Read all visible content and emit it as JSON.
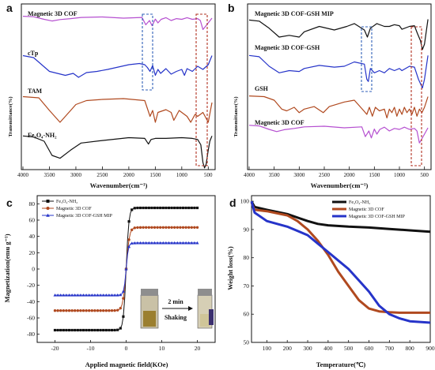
{
  "chart_data": [
    {
      "panel": "a",
      "type": "line",
      "xlabel": "Wavenumber(cm⁻¹)",
      "ylabel": "Transmittance(%)",
      "xlim": [
        4000,
        400
      ],
      "xticks": [
        4000,
        3500,
        3000,
        2500,
        2000,
        1500,
        1000,
        500
      ],
      "series": [
        {
          "name": "Magnetic 3D COF",
          "color": "#b54fd0",
          "x": [
            4000,
            3800,
            3600,
            3450,
            3300,
            3100,
            2900,
            2500,
            2100,
            1750,
            1680,
            1610,
            1560,
            1500,
            1450,
            1390,
            1300,
            1200,
            1100,
            1000,
            900,
            800,
            700,
            650,
            600,
            570,
            500,
            430
          ],
          "y": [
            0.98,
            0.96,
            0.85,
            0.78,
            0.84,
            0.88,
            0.93,
            0.95,
            0.9,
            0.93,
            0.62,
            0.8,
            0.58,
            0.86,
            0.7,
            0.85,
            0.92,
            0.8,
            0.88,
            0.85,
            0.92,
            0.85,
            0.88,
            0.8,
            0.42,
            0.5,
            0.7,
            0.9
          ]
        },
        {
          "name": "cTp",
          "color": "#2634c9",
          "x": [
            4000,
            3800,
            3500,
            3200,
            3050,
            2950,
            2800,
            2600,
            2400,
            2000,
            1800,
            1700,
            1650,
            1600,
            1550,
            1500,
            1450,
            1400,
            1300,
            1200,
            1100,
            1000,
            950,
            900,
            800,
            700,
            600,
            500,
            430
          ],
          "y": [
            0.95,
            0.9,
            0.55,
            0.45,
            0.5,
            0.4,
            0.52,
            0.55,
            0.6,
            0.72,
            0.75,
            0.72,
            0.65,
            0.55,
            0.7,
            0.45,
            0.6,
            0.5,
            0.62,
            0.48,
            0.55,
            0.6,
            0.45,
            0.62,
            0.55,
            0.68,
            0.6,
            0.72,
            0.95
          ]
        },
        {
          "name": "TAM",
          "color": "#b0491f",
          "x": [
            4000,
            3700,
            3500,
            3400,
            3300,
            3200,
            3100,
            3000,
            2800,
            2500,
            2100,
            1700,
            1600,
            1550,
            1500,
            1450,
            1300,
            1200,
            1150,
            1050,
            1000,
            900,
            830,
            750,
            700,
            600,
            500,
            430
          ],
          "y": [
            0.95,
            0.92,
            0.6,
            0.45,
            0.3,
            0.45,
            0.6,
            0.75,
            0.85,
            0.88,
            0.9,
            0.85,
            0.45,
            0.6,
            0.3,
            0.55,
            0.62,
            0.55,
            0.35,
            0.6,
            0.55,
            0.45,
            0.3,
            0.5,
            0.45,
            0.55,
            0.3,
            0.8
          ]
        },
        {
          "name": "Fe₃O₄-NH₂",
          "color": "#111111",
          "x": [
            4000,
            3800,
            3600,
            3450,
            3300,
            3100,
            2900,
            2500,
            2000,
            1700,
            1630,
            1580,
            1500,
            1300,
            1000,
            800,
            700,
            640,
            600,
            570,
            540,
            500,
            470,
            430
          ],
          "y": [
            0.95,
            0.92,
            0.8,
            0.4,
            0.32,
            0.55,
            0.75,
            0.82,
            0.9,
            0.88,
            0.72,
            0.85,
            0.88,
            0.88,
            0.9,
            0.88,
            0.85,
            0.7,
            0.2,
            0.05,
            0.15,
            0.55,
            0.8,
            0.95
          ]
        }
      ],
      "annotations": [
        "Magnetic 3D COF",
        "cTp",
        "TAM",
        "Fe₃O₄-NH₂"
      ]
    },
    {
      "panel": "b",
      "type": "line",
      "xlabel": "Wavenumber(cm⁻¹)",
      "ylabel": "Transmittance(%)",
      "xlim": [
        4000,
        400
      ],
      "xticks": [
        4000,
        3500,
        3000,
        2500,
        2000,
        1500,
        1000,
        500
      ],
      "series": [
        {
          "name": "Magnetic 3D COF-GSH MIP",
          "color": "#111111",
          "x": [
            4000,
            3800,
            3600,
            3400,
            3200,
            3000,
            2900,
            2600,
            2300,
            2050,
            1900,
            1700,
            1640,
            1580,
            1450,
            1300,
            1200,
            1100,
            1000,
            950,
            800,
            700,
            640,
            580,
            540,
            500,
            430
          ],
          "y": [
            0.88,
            0.85,
            0.65,
            0.4,
            0.45,
            0.4,
            0.55,
            0.7,
            0.6,
            0.7,
            0.78,
            0.6,
            0.4,
            0.65,
            0.78,
            0.7,
            0.7,
            0.75,
            0.72,
            0.62,
            0.7,
            0.72,
            0.5,
            0.3,
            0.05,
            0.2,
            0.9
          ]
        },
        {
          "name": "Magnetic 3D COF-GSH",
          "color": "#2634c9",
          "x": [
            4000,
            3800,
            3600,
            3400,
            3200,
            3000,
            2900,
            2600,
            2300,
            2100,
            1900,
            1700,
            1650,
            1620,
            1580,
            1500,
            1400,
            1300,
            1200,
            1100,
            1000,
            950,
            800,
            700,
            620,
            580,
            540,
            500,
            430
          ],
          "y": [
            0.85,
            0.82,
            0.6,
            0.45,
            0.5,
            0.48,
            0.55,
            0.62,
            0.58,
            0.6,
            0.7,
            0.65,
            0.3,
            0.25,
            0.55,
            0.45,
            0.5,
            0.45,
            0.55,
            0.5,
            0.55,
            0.5,
            0.6,
            0.58,
            0.3,
            0.2,
            0.1,
            0.3,
            0.85
          ]
        },
        {
          "name": "GSH",
          "color": "#b0491f",
          "x": [
            4000,
            3700,
            3500,
            3350,
            3250,
            3100,
            3000,
            2900,
            2700,
            2520,
            2400,
            2100,
            1900,
            1710,
            1650,
            1600,
            1540,
            1480,
            1400,
            1300,
            1250,
            1200,
            1150,
            1100,
            1050,
            1000,
            950,
            900,
            850,
            800,
            750,
            700,
            650,
            600,
            550,
            500,
            430
          ],
          "y": [
            0.92,
            0.9,
            0.8,
            0.55,
            0.5,
            0.6,
            0.45,
            0.55,
            0.62,
            0.45,
            0.62,
            0.75,
            0.8,
            0.5,
            0.4,
            0.6,
            0.35,
            0.6,
            0.5,
            0.55,
            0.3,
            0.55,
            0.45,
            0.6,
            0.35,
            0.55,
            0.4,
            0.6,
            0.45,
            0.55,
            0.4,
            0.6,
            0.35,
            0.55,
            0.45,
            0.6,
            0.9
          ]
        },
        {
          "name": "Magnetic 3D COF",
          "color": "#b54fd0",
          "x": [
            4000,
            3800,
            3600,
            3450,
            3300,
            3100,
            2900,
            2500,
            2100,
            1750,
            1680,
            1610,
            1560,
            1500,
            1450,
            1390,
            1300,
            1200,
            1100,
            1000,
            900,
            800,
            700,
            650,
            600,
            570,
            500,
            430
          ],
          "y": [
            0.98,
            0.96,
            0.85,
            0.78,
            0.84,
            0.88,
            0.93,
            0.95,
            0.9,
            0.93,
            0.62,
            0.8,
            0.58,
            0.86,
            0.7,
            0.85,
            0.92,
            0.8,
            0.88,
            0.85,
            0.92,
            0.85,
            0.88,
            0.8,
            0.42,
            0.5,
            0.7,
            0.9
          ]
        }
      ],
      "annotations": [
        "Magnetic 3D COF-GSH MIP",
        "Magnetic 3D COF-GSH",
        "GSH",
        "Magnetic 3D COF"
      ]
    },
    {
      "panel": "c",
      "type": "line",
      "xlabel": "Applied magnetic field(KOe)",
      "ylabel": "Magnetization(emu g⁻¹)",
      "xlim": [
        -25,
        25
      ],
      "ylim": [
        -90,
        90
      ],
      "xticks": [
        -20,
        -10,
        0,
        10,
        20
      ],
      "yticks": [
        -80,
        -60,
        -40,
        -20,
        0,
        20,
        40,
        60,
        80
      ],
      "legend": "top-left",
      "series": [
        {
          "name": "Fe₃O₄-NH₂",
          "color": "#111111",
          "marker": "square",
          "ms": 75,
          "k": 1.3
        },
        {
          "name": "Magnetic 3D COF",
          "color": "#b0491f",
          "marker": "circle",
          "ms": 51,
          "k": 1.1
        },
        {
          "name": "Magnetic 3D COF-GSH MIP",
          "color": "#2634c9",
          "marker": "triangle",
          "ms": 32,
          "k": 1.6
        }
      ],
      "inset": {
        "arrow_label": "2 min",
        "caption": "Shaking"
      }
    },
    {
      "panel": "d",
      "type": "line",
      "xlabel": "Temperature(℃)",
      "ylabel": "Weight loss(%)",
      "xlim": [
        25,
        900
      ],
      "ylim": [
        50,
        102
      ],
      "xticks": [
        100,
        200,
        300,
        400,
        500,
        600,
        700,
        800,
        900
      ],
      "yticks": [
        50,
        60,
        70,
        80,
        90,
        100
      ],
      "legend": "top-right",
      "series": [
        {
          "name": "Fe₃O₄-NH₂",
          "color": "#111111",
          "x": [
            25,
            40,
            100,
            200,
            300,
            350,
            400,
            500,
            600,
            700,
            800,
            900
          ],
          "y": [
            100,
            98,
            97,
            95.5,
            93,
            92,
            91.5,
            91,
            90.7,
            90.2,
            89.7,
            89.2
          ]
        },
        {
          "name": "Magnetic 3D COF",
          "color": "#b0491f",
          "x": [
            25,
            40,
            100,
            200,
            250,
            300,
            350,
            400,
            450,
            500,
            550,
            600,
            650,
            700,
            750,
            800,
            900
          ],
          "y": [
            99.5,
            97,
            96.5,
            95,
            93,
            90,
            86,
            81,
            75,
            70,
            65,
            62,
            61,
            60.7,
            60.5,
            60.5,
            60.5
          ]
        },
        {
          "name": "Magnetic 3D COF-GSH MIP",
          "color": "#2634c9",
          "x": [
            25,
            40,
            100,
            200,
            300,
            350,
            400,
            450,
            500,
            550,
            600,
            650,
            700,
            750,
            800,
            900
          ],
          "y": [
            100,
            96,
            93,
            91,
            88,
            85,
            82,
            79,
            76,
            72,
            68,
            63,
            60,
            58.5,
            57.5,
            57
          ]
        }
      ]
    }
  ]
}
